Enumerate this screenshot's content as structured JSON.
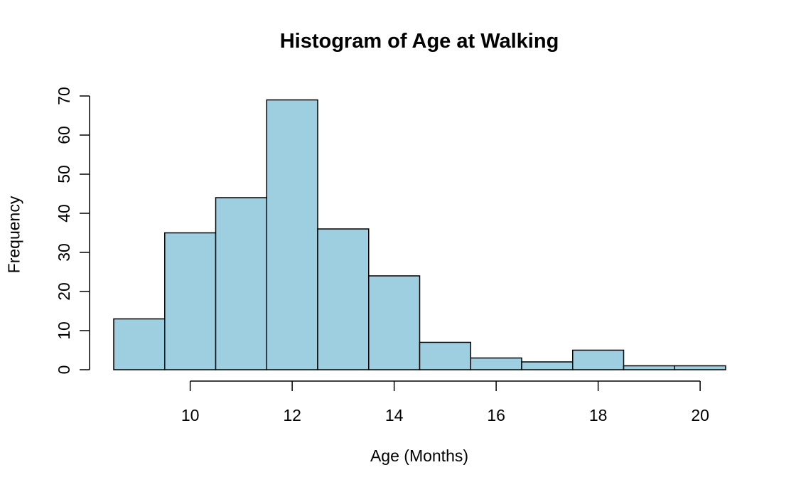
{
  "chart_data": {
    "type": "bar",
    "title": "Histogram of Age at Walking",
    "xlabel": "Age (Months)",
    "ylabel": "Frequency",
    "bin_edges": [
      8.5,
      9.5,
      10.5,
      11.5,
      12.5,
      13.5,
      14.5,
      15.5,
      16.5,
      17.5,
      18.5,
      19.5,
      20.5
    ],
    "values": [
      13,
      35,
      44,
      69,
      36,
      24,
      7,
      3,
      2,
      5,
      1,
      1
    ],
    "x_ticks": [
      10,
      12,
      14,
      16,
      18,
      20
    ],
    "y_ticks": [
      0,
      10,
      20,
      30,
      40,
      50,
      60,
      70
    ],
    "xlim": [
      8.5,
      20.5
    ],
    "ylim": [
      0,
      70
    ],
    "bar_color": "#9ecfe0",
    "edge_color": "#000000",
    "grid": false
  }
}
